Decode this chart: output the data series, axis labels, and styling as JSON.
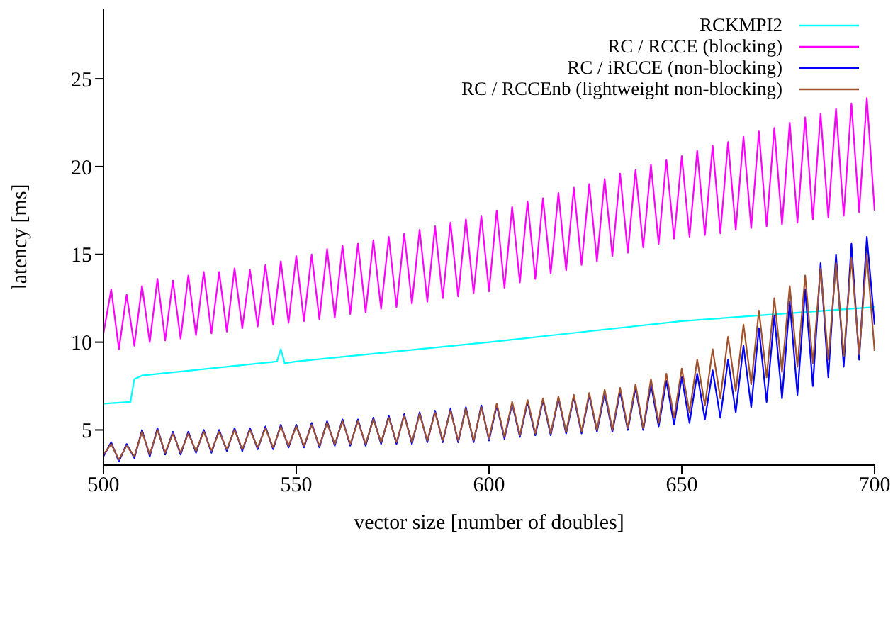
{
  "chart_data": {
    "type": "line",
    "xlabel": "vector size [number of doubles]",
    "ylabel": "latency [ms]",
    "x": [
      500,
      502,
      504,
      506,
      508,
      510,
      512,
      514,
      516,
      518,
      520,
      522,
      524,
      526,
      528,
      530,
      532,
      534,
      536,
      538,
      540,
      542,
      544,
      546,
      548,
      550,
      552,
      554,
      556,
      558,
      560,
      562,
      564,
      566,
      568,
      570,
      572,
      574,
      576,
      578,
      580,
      582,
      584,
      586,
      588,
      590,
      592,
      594,
      596,
      598,
      600,
      602,
      604,
      606,
      608,
      610,
      612,
      614,
      616,
      618,
      620,
      622,
      624,
      626,
      628,
      630,
      632,
      634,
      636,
      638,
      640,
      642,
      644,
      646,
      648,
      650,
      652,
      654,
      656,
      658,
      660,
      662,
      664,
      666,
      668,
      670,
      672,
      674,
      676,
      678,
      680,
      682,
      684,
      686,
      688,
      690,
      692,
      694,
      696,
      698,
      700
    ],
    "series": [
      {
        "name": "RCKMPI2",
        "color": "#00ffff",
        "x": [
          500,
          507,
          508,
          510,
          545,
          546,
          547,
          550,
          600,
          650,
          700
        ],
        "values": [
          6.5,
          6.6,
          7.9,
          8.1,
          8.9,
          9.6,
          8.8,
          8.9,
          10.0,
          11.2,
          12.0
        ]
      },
      {
        "name": "RC / RCCE (blocking)",
        "color": "#ff00ff",
        "values": [
          10.5,
          13.0,
          9.6,
          12.7,
          9.8,
          13.2,
          10.0,
          13.6,
          10.1,
          13.5,
          10.2,
          13.8,
          10.4,
          14.0,
          10.5,
          14.0,
          10.6,
          14.2,
          10.8,
          14.1,
          10.9,
          14.4,
          11.0,
          14.6,
          11.1,
          14.9,
          11.2,
          15.0,
          11.3,
          15.3,
          11.4,
          15.5,
          11.6,
          15.6,
          11.7,
          15.8,
          11.9,
          16.0,
          12.0,
          16.2,
          12.2,
          16.4,
          12.3,
          16.6,
          12.5,
          16.8,
          12.6,
          17.0,
          12.8,
          17.2,
          12.9,
          17.5,
          13.1,
          17.7,
          13.4,
          18.0,
          13.6,
          18.2,
          13.9,
          18.5,
          14.1,
          18.8,
          14.4,
          19.0,
          14.6,
          19.3,
          14.9,
          19.6,
          15.1,
          19.8,
          15.4,
          20.1,
          15.6,
          20.4,
          15.9,
          20.6,
          16.0,
          20.9,
          16.1,
          21.2,
          16.2,
          21.4,
          16.4,
          21.7,
          16.5,
          22.0,
          16.6,
          22.2,
          16.7,
          22.5,
          16.8,
          22.8,
          17.0,
          23.0,
          17.1,
          23.3,
          17.2,
          23.6,
          17.4,
          23.9,
          17.5
        ]
      },
      {
        "name": "RC / iRCCE (non-blocking)",
        "color": "#0000ff",
        "values": [
          3.5,
          4.3,
          3.2,
          4.2,
          3.4,
          5.0,
          3.5,
          5.1,
          3.6,
          4.9,
          3.6,
          4.9,
          3.7,
          5.0,
          3.7,
          5.0,
          3.8,
          5.1,
          3.8,
          5.1,
          3.9,
          5.2,
          3.9,
          5.3,
          4.0,
          5.3,
          4.0,
          5.4,
          4.0,
          5.5,
          4.1,
          5.6,
          4.1,
          5.6,
          4.1,
          5.7,
          4.2,
          5.8,
          4.2,
          5.9,
          4.2,
          6.0,
          4.3,
          6.1,
          4.3,
          6.2,
          4.3,
          6.3,
          4.3,
          6.4,
          4.4,
          6.4,
          4.5,
          6.5,
          4.6,
          6.6,
          4.7,
          6.7,
          4.7,
          6.8,
          4.8,
          6.9,
          4.8,
          7.0,
          4.9,
          7.1,
          4.9,
          7.2,
          5.0,
          7.4,
          5.0,
          7.6,
          5.2,
          7.8,
          5.3,
          8.0,
          5.4,
          8.2,
          5.6,
          8.4,
          5.7,
          9.0,
          6.0,
          9.8,
          6.3,
          10.8,
          6.6,
          11.5,
          6.8,
          12.3,
          7.0,
          13.0,
          7.5,
          14.5,
          8.0,
          15.0,
          8.6,
          15.6,
          9.0,
          16.0,
          11.0
        ]
      },
      {
        "name": "RC / RCCEnb (lightweight non-blocking)",
        "color": "#a0522d",
        "values": [
          3.6,
          4.2,
          3.3,
          4.1,
          3.5,
          4.9,
          3.6,
          5.0,
          3.7,
          4.8,
          3.7,
          4.8,
          3.8,
          4.9,
          3.8,
          4.9,
          3.9,
          5.0,
          3.9,
          5.0,
          4.0,
          5.1,
          4.0,
          5.2,
          4.1,
          5.2,
          4.1,
          5.3,
          4.1,
          5.4,
          4.2,
          5.5,
          4.2,
          5.5,
          4.2,
          5.6,
          4.3,
          5.7,
          4.3,
          5.8,
          4.3,
          5.9,
          4.4,
          6.0,
          4.4,
          6.1,
          4.4,
          6.2,
          4.4,
          6.3,
          4.5,
          6.5,
          4.6,
          6.6,
          4.7,
          6.7,
          4.8,
          6.8,
          4.8,
          6.9,
          4.9,
          7.0,
          4.9,
          7.1,
          5.0,
          7.3,
          5.0,
          7.4,
          5.1,
          7.6,
          5.1,
          7.9,
          5.4,
          8.2,
          5.7,
          8.5,
          6.0,
          9.0,
          6.4,
          9.6,
          6.8,
          10.3,
          7.2,
          11.0,
          7.6,
          11.8,
          8.0,
          12.5,
          8.3,
          13.2,
          8.6,
          13.8,
          8.8,
          14.2,
          9.0,
          14.5,
          9.2,
          14.8,
          9.3,
          15.0,
          9.5
        ]
      }
    ],
    "xlim": [
      500,
      700
    ],
    "xticks": [
      500,
      550,
      600,
      650,
      700
    ],
    "ylim": [
      3,
      29
    ],
    "yticks": [
      5,
      10,
      15,
      20,
      25
    ],
    "grid": false,
    "legend": "top right",
    "marker": "none",
    "line_style": "solid"
  }
}
